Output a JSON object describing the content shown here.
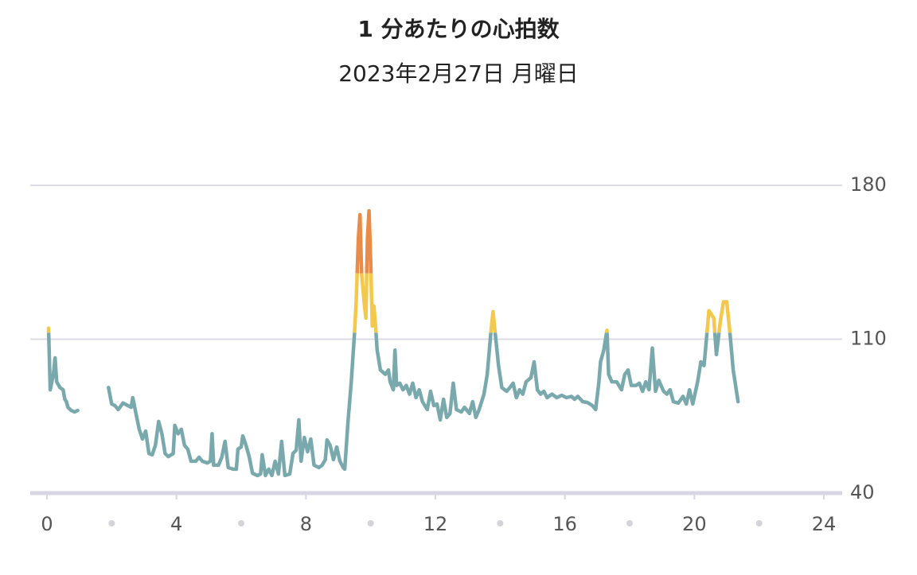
{
  "chart_data": {
    "type": "line",
    "title": "1 分あたりの心拍数",
    "subtitle": "2023年2月27日 月曜日",
    "x": [
      0.05,
      0.1,
      0.2,
      0.25,
      0.3,
      0.4,
      0.5,
      0.55,
      0.6,
      0.65,
      0.75,
      0.85,
      0.95,
      1.4,
      1.9,
      2.0,
      2.1,
      2.2,
      2.35,
      2.5,
      2.6,
      2.65,
      2.75,
      2.85,
      2.95,
      3.05,
      3.15,
      3.25,
      3.35,
      3.45,
      3.55,
      3.65,
      3.75,
      3.9,
      3.95,
      4.05,
      4.15,
      4.25,
      4.35,
      4.45,
      4.6,
      4.7,
      4.8,
      4.95,
      5.05,
      5.1,
      5.15,
      5.3,
      5.4,
      5.5,
      5.6,
      5.75,
      5.85,
      5.9,
      6.0,
      6.05,
      6.15,
      6.25,
      6.35,
      6.5,
      6.6,
      6.65,
      6.75,
      6.85,
      6.95,
      7.05,
      7.15,
      7.25,
      7.35,
      7.5,
      7.6,
      7.7,
      7.78,
      7.85,
      7.95,
      8.05,
      8.15,
      8.25,
      8.4,
      8.5,
      8.6,
      8.65,
      8.75,
      8.85,
      8.95,
      9.05,
      9.15,
      9.2,
      9.3,
      9.4,
      9.5,
      9.55,
      9.62,
      9.67,
      9.72,
      9.8,
      9.85,
      9.9,
      9.95,
      10.0,
      10.05,
      10.1,
      10.15,
      10.2,
      10.3,
      10.45,
      10.55,
      10.6,
      10.7,
      10.75,
      10.8,
      10.9,
      11.0,
      11.1,
      11.2,
      11.3,
      11.4,
      11.5,
      11.6,
      11.75,
      11.85,
      11.95,
      12.05,
      12.15,
      12.25,
      12.35,
      12.45,
      12.55,
      12.65,
      12.8,
      12.9,
      13.05,
      13.15,
      13.25,
      13.35,
      13.5,
      13.6,
      13.72,
      13.78,
      13.85,
      13.95,
      14.05,
      14.2,
      14.3,
      14.4,
      14.5,
      14.6,
      14.7,
      14.8,
      14.95,
      15.05,
      15.15,
      15.25,
      15.35,
      15.45,
      15.6,
      15.75,
      15.9,
      16.05,
      16.2,
      16.3,
      16.4,
      16.55,
      16.7,
      16.85,
      16.95,
      17.05,
      17.1,
      17.2,
      17.3,
      17.35,
      17.45,
      17.6,
      17.75,
      17.85,
      17.95,
      18.05,
      18.2,
      18.3,
      18.4,
      18.5,
      18.6,
      18.7,
      18.8,
      18.9,
      19.05,
      19.15,
      19.25,
      19.35,
      19.5,
      19.65,
      19.75,
      19.85,
      19.95,
      20.1,
      20.2,
      20.3,
      20.45,
      20.6,
      20.68,
      20.8,
      20.9,
      21.0,
      21.1,
      21.2,
      21.35
    ],
    "series": [
      {
        "color": "#7aa9ad",
        "values": [
          115,
          87,
          94,
          101.5,
          90.6,
          88,
          87,
          82.7,
          81.6,
          79,
          77.6,
          76.9,
          77.6,
          null,
          88,
          80.5,
          79.8,
          78,
          81,
          79.8,
          79,
          83.4,
          76.2,
          69,
          64.6,
          68.2,
          58,
          57.4,
          61.7,
          72.6,
          67,
          58,
          56.6,
          58,
          70.8,
          67,
          69,
          61.7,
          60,
          54.5,
          54.5,
          56.3,
          54.5,
          53.7,
          54.5,
          67,
          52.7,
          52.7,
          56.3,
          63.5,
          51.6,
          50.9,
          50.9,
          60,
          61,
          66,
          61.7,
          56.3,
          49,
          48,
          48.7,
          57.4,
          48,
          50.9,
          48,
          54.5,
          48.7,
          63.5,
          48,
          48.7,
          58,
          59.5,
          73.3,
          54.5,
          65.3,
          58.8,
          64.6,
          52.7,
          51.6,
          52.7,
          55.2,
          64.2,
          61.7,
          55.2,
          61,
          54.5,
          51.6,
          50.9,
          72.6,
          90.6,
          112.4,
          126.8,
          155.8,
          166.6,
          139.6,
          126.8,
          119.6,
          155.8,
          168.4,
          145,
          116,
          125,
          116,
          105,
          96,
          94,
          96,
          90.6,
          87,
          105,
          89,
          90,
          87,
          89,
          85,
          90,
          83.4,
          87,
          81.6,
          78,
          86.3,
          79.8,
          80.5,
          73.3,
          82.7,
          74.4,
          76.2,
          90,
          78,
          76.9,
          79,
          76.2,
          81.6,
          74.4,
          78,
          85,
          94,
          114,
          122.5,
          112.4,
          98,
          88,
          86.3,
          88,
          90,
          83.4,
          87,
          85,
          90.6,
          92.5,
          99.7,
          87,
          85,
          86.3,
          83.4,
          85,
          83.4,
          84.5,
          83.4,
          84,
          82.7,
          84,
          81.6,
          81.2,
          79.8,
          78,
          90.6,
          99.7,
          105,
          114,
          94,
          90.6,
          90.6,
          87,
          94,
          96,
          89,
          89,
          90,
          86.3,
          90.6,
          87,
          106,
          86.3,
          91.3,
          86.3,
          85,
          87,
          81.6,
          80.9,
          84,
          80.5,
          87,
          80.5,
          90.6,
          99.7,
          98,
          123,
          119.6,
          103,
          118,
          127,
          127,
          112.4,
          96,
          81.6
        ]
      }
    ],
    "zones": [
      {
        "from": 113,
        "color": "#f2c94c"
      },
      {
        "from": 140,
        "color": "#e98c4a"
      }
    ],
    "xlim": [
      0,
      24
    ],
    "xticks": [
      0,
      4,
      8,
      12,
      16,
      20,
      24
    ],
    "xminorticks": [
      2,
      6,
      10,
      14,
      18,
      22
    ],
    "ylim": [
      40,
      180
    ],
    "yticks": [
      40,
      110,
      180
    ],
    "grid": true
  }
}
